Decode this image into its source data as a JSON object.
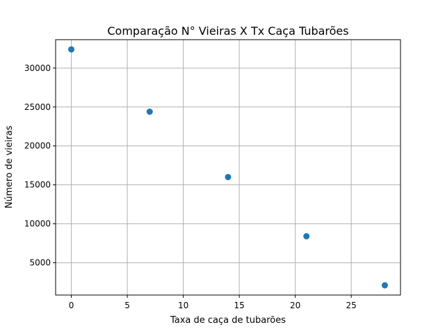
{
  "chart_data": {
    "type": "scatter",
    "title": "Comparação N° Vieiras X Tx Caça Tubarões",
    "xlabel": "Taxa de caça de tubarões",
    "ylabel": "Número de vieiras",
    "x": [
      0,
      7,
      14,
      21,
      28
    ],
    "y": [
      32400,
      24400,
      16000,
      8400,
      2100
    ],
    "xlim": [
      -1.4,
      29.4
    ],
    "ylim": [
      850,
      33650
    ],
    "xticks": [
      0,
      5,
      10,
      15,
      20,
      25
    ],
    "yticks": [
      5000,
      10000,
      15000,
      20000,
      25000,
      30000
    ],
    "grid": true,
    "legend": "none",
    "colors": {
      "marker": "#1f77b4",
      "grid": "#b0b0b0",
      "axes": "#000000"
    }
  }
}
